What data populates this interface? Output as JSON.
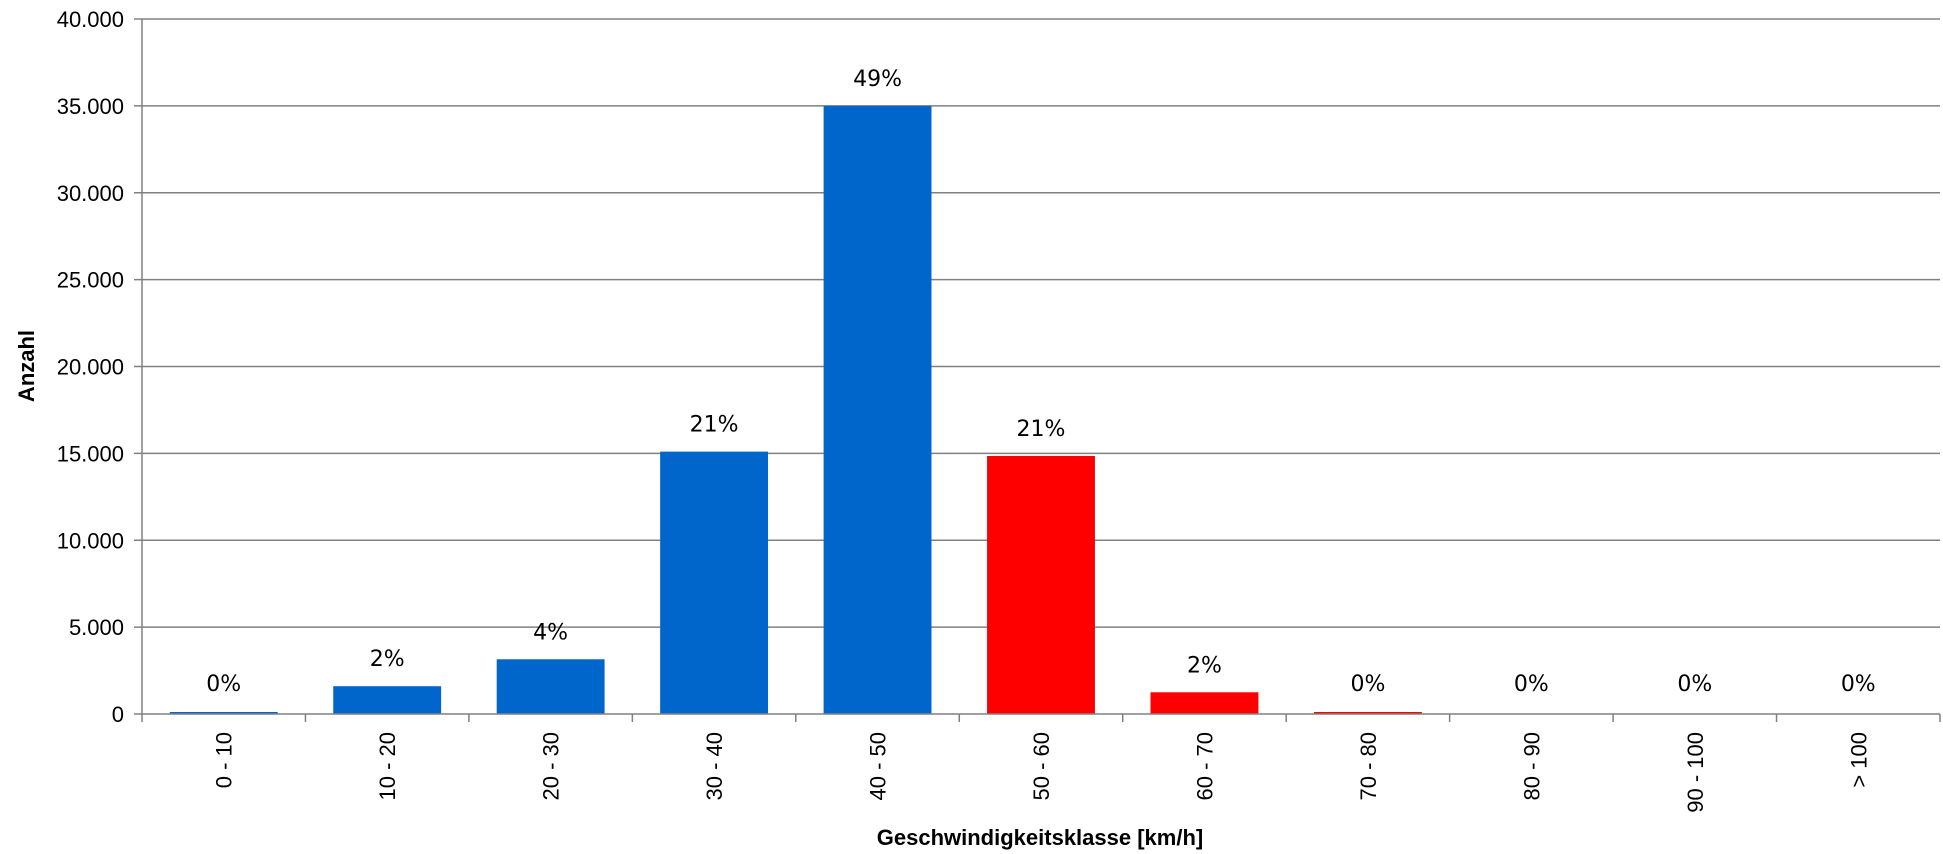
{
  "chart_data": {
    "type": "bar",
    "title": "",
    "xlabel": "Geschwindigkeitsklasse [km/h]",
    "ylabel": "Anzahl",
    "ylim": [
      0,
      40000
    ],
    "yticks": [
      0,
      5000,
      10000,
      15000,
      20000,
      25000,
      30000,
      35000,
      40000
    ],
    "ytick_labels": [
      "0",
      "5.000",
      "10.000",
      "15.000",
      "20.000",
      "25.000",
      "30.000",
      "35.000",
      "40.000"
    ],
    "categories": [
      "0 - 10",
      "10 - 20",
      "20 - 30",
      "30 - 40",
      "40 - 50",
      "50 - 60",
      "60 - 70",
      "70 - 80",
      "80 - 90",
      "90 - 100",
      "> 100"
    ],
    "values": [
      100,
      1600,
      3150,
      15100,
      35000,
      14850,
      1250,
      80,
      0,
      0,
      0
    ],
    "data_labels": [
      "0%",
      "2%",
      "4%",
      "21%",
      "49%",
      "21%",
      "2%",
      "0%",
      "0%",
      "0%",
      "0%"
    ],
    "bar_colors": [
      "#0066cc",
      "#0066cc",
      "#0066cc",
      "#0066cc",
      "#0066cc",
      "#ff0000",
      "#ff0000",
      "#ff0000",
      "#ff0000",
      "#ff0000",
      "#ff0000"
    ],
    "grid": true,
    "legend": "none",
    "gridline_color": "#808080"
  }
}
